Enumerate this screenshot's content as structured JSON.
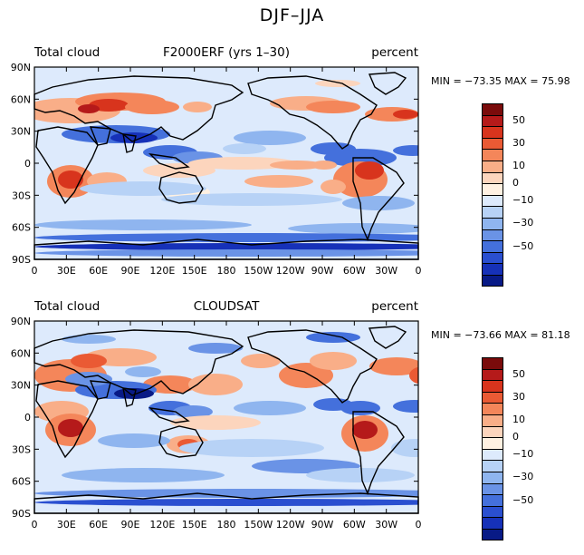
{
  "figure_title": "DJF–JJA",
  "colorbar": {
    "colors": [
      "#7a0b0b",
      "#b51a1a",
      "#d8341d",
      "#ea5a34",
      "#f4865a",
      "#f9ae88",
      "#fcd5bd",
      "#fff1e2",
      "#ddeafc",
      "#b7d2f6",
      "#8fb5ef",
      "#6a93e6",
      "#4470dc",
      "#2a4fd0",
      "#1631b8",
      "#081a86"
    ],
    "labels": [
      "50",
      "30",
      "10",
      "0",
      "−10",
      "−30",
      "−50"
    ]
  },
  "axes": {
    "lat_labels": [
      "90N",
      "60N",
      "30N",
      "0",
      "30S",
      "60S",
      "90S"
    ],
    "lon_labels": [
      "0",
      "30E",
      "60E",
      "90E",
      "120E",
      "150E",
      "180",
      "150W",
      "120W",
      "90W",
      "60W",
      "30W",
      "0"
    ]
  },
  "panels": [
    {
      "left_label": "Total cloud",
      "center_label": "F2000ERF (yrs 1–30)",
      "right_label": "percent",
      "min_max": "MIN = −73.35 MAX =  75.98"
    },
    {
      "left_label": "Total cloud",
      "center_label": "CLOUDSAT",
      "right_label": "percent",
      "min_max": "MIN = −73.66 MAX =  81.18"
    }
  ]
}
